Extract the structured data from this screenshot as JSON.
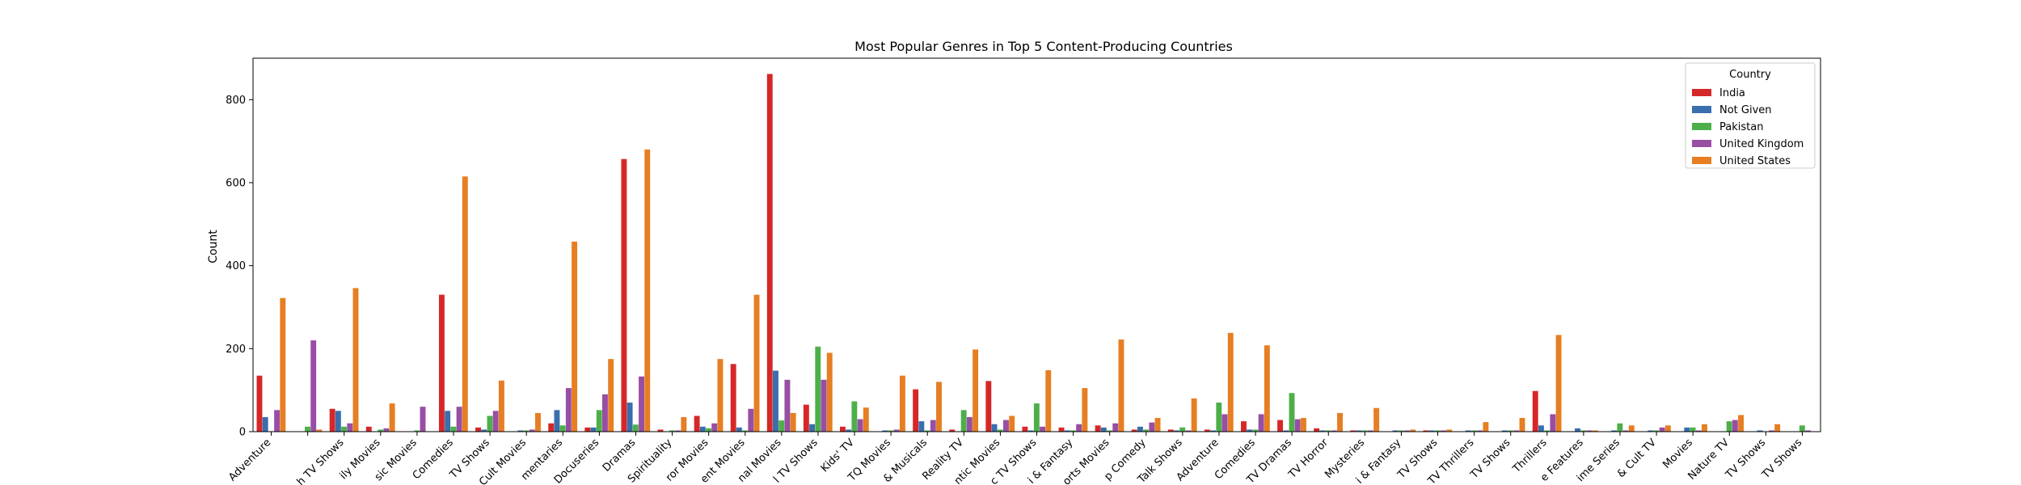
{
  "chart_data": {
    "type": "bar",
    "title": "Most Popular Genres in Top 5 Content-Producing Countries",
    "xlabel": "",
    "ylabel": "Count",
    "ylim": [
      0,
      900
    ],
    "yticks": [
      0,
      200,
      400,
      600,
      800
    ],
    "grid": false,
    "legend": {
      "title": "Country",
      "placement": "top-right"
    },
    "categories": [
      "Action & Adventure",
      "Anime Features",
      "British TV Shows",
      "Children & Family Movies",
      "Classic Movies",
      "Comedies",
      "Crime TV Shows",
      "Cult Movies",
      "Documentaries",
      "Docuseries",
      "Dramas",
      "Faith & Spirituality",
      "Horror Movies",
      "Independent Movies",
      "International Movies",
      "International TV Shows",
      "Kids' TV",
      "LGBTQ Movies",
      "Music & Musicals",
      "Reality TV",
      "Romantic Movies",
      "Romantic TV Shows",
      "Sci-Fi & Fantasy",
      "Sports Movies",
      "Stand-Up Comedy",
      "Stand-Up Comedy & Talk Shows",
      "TV Action & Adventure",
      "TV Comedies",
      "TV Dramas",
      "TV Horror",
      "TV Mysteries",
      "TV Sci-Fi & Fantasy",
      "Teen TV Shows",
      "TV Thrillers",
      "Spanish-Language TV Shows",
      "Thrillers",
      "Anime Series",
      "Korean TV Shows",
      "Classic & Cult TV",
      "Movies",
      "Docuseries Nature TV",
      "Science & Nature TV",
      "Classic TV Shows"
    ],
    "tick_labels": [
      "Adventure",
      "",
      "h TV Shows",
      "ily Movies",
      "sic Movies",
      "Comedies",
      "TV Shows",
      "Cult Movies",
      "mentaries",
      "Docuseries",
      "Dramas",
      "Spirituality",
      "ror Movies",
      "ent Movies",
      "nal Movies",
      "l TV Shows",
      "Kids' TV",
      "TQ Movies",
      "& Musicals",
      "Reality TV",
      "ntic Movies",
      "c TV Shows",
      "i & Fantasy",
      "orts Movies",
      "p Comedy",
      "Talk Shows",
      "Adventure",
      "Comedies",
      "TV Dramas",
      "TV Horror",
      "Mysteries",
      "i & Fantasy",
      "TV Shows",
      "TV Thrillers",
      "TV Shows",
      "Thrillers",
      "e Features",
      "ime Series",
      "& Cult TV",
      "Movies",
      "Nature TV",
      "TV Shows",
      "TV Shows"
    ],
    "series": [
      {
        "name": "India",
        "color": "#d62728",
        "values": [
          135,
          0,
          55,
          12,
          0,
          330,
          10,
          0,
          20,
          10,
          657,
          5,
          38,
          163,
          862,
          65,
          12,
          0,
          102,
          5,
          122,
          12,
          10,
          15,
          5,
          5,
          5,
          25,
          28,
          8,
          3,
          0,
          3,
          0,
          0,
          98,
          0,
          0,
          0,
          0,
          0,
          0,
          0
        ]
      },
      {
        "name": "Not Given",
        "color": "#3a6ead",
        "values": [
          35,
          0,
          50,
          0,
          0,
          50,
          5,
          3,
          52,
          10,
          70,
          0,
          12,
          10,
          147,
          18,
          5,
          3,
          25,
          0,
          18,
          3,
          3,
          10,
          12,
          3,
          3,
          5,
          3,
          3,
          3,
          3,
          3,
          3,
          3,
          15,
          8,
          3,
          3,
          10,
          0,
          3,
          0
        ]
      },
      {
        "name": "Pakistan",
        "color": "#4daf4a",
        "values": [
          0,
          12,
          12,
          5,
          3,
          12,
          38,
          3,
          15,
          52,
          17,
          3,
          8,
          3,
          27,
          205,
          73,
          3,
          3,
          52,
          5,
          68,
          3,
          3,
          5,
          10,
          70,
          5,
          93,
          3,
          3,
          3,
          3,
          3,
          3,
          3,
          3,
          20,
          3,
          10,
          25,
          0,
          15
        ]
      },
      {
        "name": "United Kingdom",
        "color": "#984ea3",
        "values": [
          52,
          220,
          20,
          8,
          60,
          60,
          50,
          5,
          105,
          90,
          133,
          3,
          20,
          55,
          125,
          125,
          30,
          5,
          28,
          35,
          28,
          12,
          18,
          20,
          22,
          3,
          42,
          42,
          30,
          3,
          3,
          3,
          3,
          3,
          3,
          42,
          3,
          3,
          10,
          3,
          28,
          3,
          3
        ]
      },
      {
        "name": "United States",
        "color": "#e67e22",
        "values": [
          322,
          5,
          346,
          68,
          0,
          615,
          123,
          45,
          458,
          175,
          680,
          35,
          175,
          330,
          45,
          190,
          58,
          135,
          120,
          198,
          38,
          148,
          105,
          222,
          33,
          80,
          238,
          208,
          33,
          45,
          57,
          5,
          5,
          23,
          33,
          233,
          3,
          15,
          15,
          18,
          40,
          18,
          0
        ]
      }
    ]
  }
}
